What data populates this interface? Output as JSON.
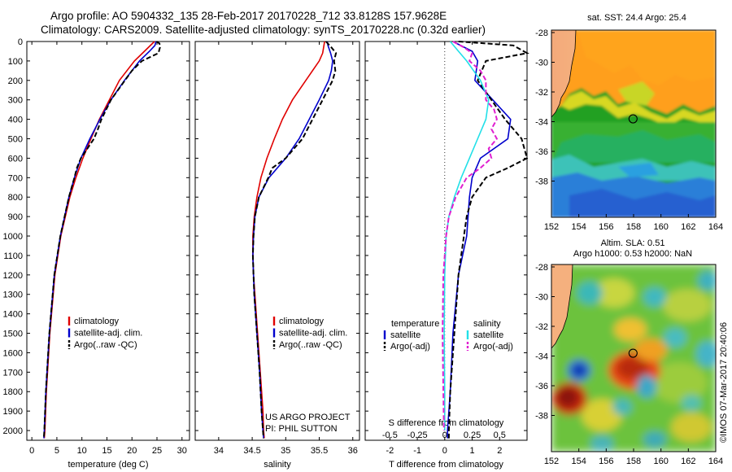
{
  "header": {
    "line1": "Argo profile: AO 5904332_135 28-Feb-2017 20170228_712 33.8128S 157.9628E",
    "line2": "Climatology: CARS2009. Satellite-adjusted climatology: synTS_20170228.nc (0.32d earlier)"
  },
  "colors": {
    "climatology": "#e00000",
    "satellite": "#0000cc",
    "argo": "#000000",
    "s_satellite": "#22e0e8",
    "s_argo": "#e020d0"
  },
  "depth_axis": {
    "ylim": [
      2050,
      0
    ],
    "ticks": [
      0,
      100,
      200,
      300,
      400,
      500,
      600,
      700,
      800,
      900,
      1000,
      1100,
      1200,
      1300,
      1400,
      1500,
      1600,
      1700,
      1800,
      1900,
      2000
    ]
  },
  "chart_data": [
    {
      "type": "line",
      "id": "temperature",
      "xlabel": "temperature (deg C)",
      "xlim": [
        -1,
        31.5
      ],
      "xticks": [
        0,
        5,
        10,
        15,
        20,
        25,
        30
      ],
      "legend": {
        "placement": "lower-left",
        "items": [
          "climatology",
          "satellite-adj. clim.",
          "Argo(..raw -QC)"
        ]
      },
      "series": [
        {
          "name": "climatology",
          "color": "red",
          "depth": [
            0,
            50,
            100,
            200,
            300,
            400,
            500,
            600,
            700,
            800,
            1000,
            1200,
            1500,
            1800,
            2000,
            2040
          ],
          "values": [
            24.5,
            22.5,
            20.5,
            17.5,
            15.5,
            13.5,
            11.8,
            10.2,
            8.8,
            7.6,
            5.8,
            4.6,
            3.6,
            2.9,
            2.6,
            2.5
          ]
        },
        {
          "name": "satellite-adj. clim.",
          "color": "blue",
          "depth": [
            0,
            20,
            50,
            100,
            200,
            300,
            400,
            500,
            600,
            700,
            800,
            1000,
            1200,
            1500,
            1800,
            2000,
            2040
          ],
          "values": [
            24.8,
            24.6,
            23.5,
            21.5,
            18.5,
            15.8,
            13.6,
            11.6,
            9.8,
            8.5,
            7.4,
            5.7,
            4.5,
            3.5,
            2.8,
            2.5,
            2.4
          ]
        },
        {
          "name": "Argo(..raw -QC)",
          "color": "black",
          "dashed": true,
          "depth": [
            0,
            10,
            30,
            60,
            100,
            150,
            200,
            300,
            400,
            450,
            500,
            550,
            600,
            650,
            700,
            800,
            1000,
            1200,
            1500,
            1800,
            2000,
            2040
          ],
          "values": [
            24.9,
            25.5,
            25.6,
            25.3,
            22.0,
            20.0,
            18.6,
            15.8,
            13.9,
            13.2,
            12.4,
            11.1,
            9.8,
            9.0,
            8.5,
            7.4,
            5.7,
            4.5,
            3.5,
            2.8,
            2.5,
            2.4
          ]
        }
      ]
    },
    {
      "type": "line",
      "id": "salinity",
      "xlabel": "salinity",
      "xlim": [
        33.65,
        36.1
      ],
      "xticks": [
        34,
        34.5,
        35,
        35.5,
        36
      ],
      "legend": {
        "placement": "lower-left",
        "items": [
          "climatology",
          "satellite-adj. clim.",
          "Argo(..raw -QC)"
        ]
      },
      "annotation": [
        "US ARGO PROJECT",
        "PI: PHIL SUTTON"
      ],
      "series": [
        {
          "name": "climatology",
          "color": "red",
          "depth": [
            0,
            20,
            60,
            100,
            200,
            300,
            400,
            500,
            600,
            700,
            800,
            900,
            1000,
            1100,
            1200,
            1300,
            1500,
            1700,
            1900,
            2000,
            2040
          ],
          "values": [
            35.58,
            35.57,
            35.55,
            35.5,
            35.3,
            35.1,
            34.95,
            34.83,
            34.72,
            34.63,
            34.57,
            34.53,
            34.51,
            34.51,
            34.52,
            34.54,
            34.58,
            34.62,
            34.66,
            34.67,
            34.68
          ]
        },
        {
          "name": "satellite-adj. clim.",
          "color": "blue",
          "depth": [
            0,
            20,
            60,
            100,
            150,
            200,
            300,
            400,
            500,
            600,
            700,
            800,
            900,
            1000,
            1100,
            1200,
            1300,
            1500,
            1700,
            1900,
            2000,
            2040
          ],
          "values": [
            35.62,
            35.63,
            35.67,
            35.7,
            35.68,
            35.64,
            35.5,
            35.35,
            35.2,
            35.0,
            34.75,
            34.6,
            34.54,
            34.52,
            34.51,
            34.52,
            34.53,
            34.57,
            34.61,
            34.64,
            34.66,
            34.67
          ]
        },
        {
          "name": "Argo(..raw -QC)",
          "color": "black",
          "dashed": true,
          "depth": [
            0,
            30,
            60,
            100,
            150,
            200,
            300,
            400,
            500,
            600,
            650,
            700,
            800,
            900,
            1000,
            1100,
            1200,
            1300,
            1500,
            1700,
            1900,
            2000,
            2040
          ],
          "values": [
            35.6,
            35.68,
            35.75,
            35.72,
            35.74,
            35.7,
            35.55,
            35.4,
            35.25,
            35.0,
            34.8,
            34.74,
            34.6,
            34.54,
            34.52,
            34.51,
            34.52,
            34.53,
            34.57,
            34.61,
            34.64,
            34.66,
            34.67
          ]
        }
      ]
    },
    {
      "type": "line",
      "id": "difference",
      "xlabel": "T difference from climatology",
      "xlabel_top": "S difference from climatology",
      "xlim": [
        -2.9,
        3.0
      ],
      "xticks": [
        -2,
        -1,
        0,
        1,
        2
      ],
      "s_ticks": {
        "labels": [
          "-0.5",
          "-0.25",
          "0",
          "0.25",
          "0.5"
        ],
        "values": [
          -2,
          -1,
          0,
          1,
          2
        ]
      },
      "legend": {
        "placement": "lower-left",
        "temperature_title": "temperature",
        "salinity_title": "salinity",
        "items": [
          "satellite",
          "Argo(-adj)",
          "satellite",
          "Argo(-adj)"
        ]
      },
      "series": [
        {
          "name": "satellite",
          "var": "temperature",
          "color": "blue",
          "depth": [
            0,
            50,
            100,
            200,
            400,
            500,
            600,
            700,
            800,
            1000,
            1200,
            1500,
            1800,
            2000,
            2040
          ],
          "values": [
            0.3,
            1.0,
            1.2,
            1.1,
            2.4,
            2.3,
            1.3,
            1.0,
            0.9,
            0.8,
            0.5,
            0.3,
            0.2,
            0.1,
            0.1
          ]
        },
        {
          "name": "Argo(-adj)",
          "var": "temperature",
          "dashed": true,
          "color": "black",
          "depth": [
            0,
            20,
            60,
            100,
            200,
            400,
            500,
            600,
            650,
            700,
            800,
            900,
            1000,
            1200,
            1500,
            1800,
            2000,
            2040
          ],
          "values": [
            0.5,
            2.5,
            3.0,
            1.5,
            1.2,
            2.2,
            2.8,
            3.0,
            2.3,
            1.5,
            1.0,
            0.8,
            0.7,
            0.5,
            0.35,
            0.2,
            0.15,
            0.15
          ]
        },
        {
          "name": "satellite",
          "var": "salinity",
          "color": "cyan",
          "depth": [
            0,
            50,
            100,
            200,
            300,
            400,
            500,
            600,
            700,
            800,
            900,
            1000,
            1200,
            1500,
            1800,
            2000
          ],
          "values": [
            0.2,
            0.5,
            0.8,
            1.3,
            1.6,
            1.5,
            1.2,
            0.9,
            0.6,
            0.35,
            0.15,
            0.05,
            0.0,
            -0.02,
            0.0,
            0.0
          ]
        },
        {
          "name": "Argo(-adj)",
          "var": "salinity",
          "dashed": true,
          "color": "magenta",
          "depth": [
            0,
            30,
            60,
            100,
            150,
            200,
            300,
            350,
            400,
            450,
            500,
            550,
            600,
            650,
            700,
            800,
            900,
            1000,
            1200,
            1500,
            1800,
            2000
          ],
          "values": [
            0.3,
            0.7,
            1.0,
            0.9,
            1.3,
            1.5,
            1.5,
            1.8,
            1.9,
            1.7,
            1.9,
            1.6,
            1.7,
            1.3,
            0.8,
            0.4,
            0.15,
            0.05,
            -0.05,
            -0.08,
            -0.05,
            -0.03
          ]
        }
      ]
    }
  ],
  "maps": [
    {
      "id": "sst",
      "title": "sat. SST: 24.4  Argo: 25.4",
      "subtitle": "",
      "xticks": [
        "152",
        "154",
        "156",
        "158",
        "160",
        "162",
        "164"
      ],
      "yticks": [
        "-28",
        "-30",
        "-32",
        "-34",
        "-36",
        "-38"
      ],
      "marker": {
        "lon": 157.96,
        "lat": -33.81
      }
    },
    {
      "id": "sla",
      "title": "Altim. SLA: 0.51",
      "subtitle": "Argo h1000: 0.53 h2000: NaN",
      "xticks": [
        "152",
        "154",
        "156",
        "158",
        "160",
        "162",
        "164"
      ],
      "yticks": [
        "-28",
        "-30",
        "-32",
        "-34",
        "-36",
        "-38"
      ],
      "marker": {
        "lon": 157.96,
        "lat": -33.81
      }
    }
  ],
  "watermark": "©IMOS 07-Mar-2017 20:40:06"
}
